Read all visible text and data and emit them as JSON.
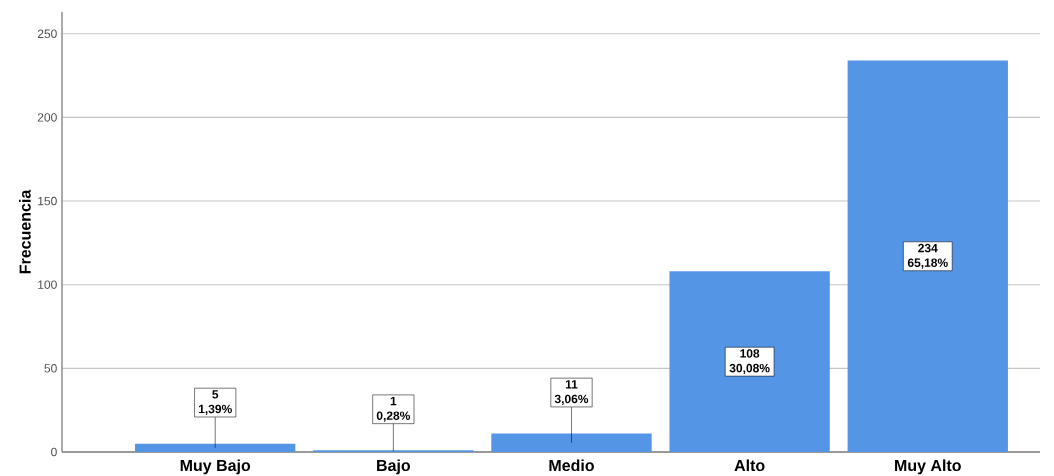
{
  "chart_data": {
    "type": "bar",
    "ylabel": "Frecuencia",
    "categories": [
      "Muy Bajo",
      "Bajo",
      "Medio",
      "Alto",
      "Muy Alto"
    ],
    "values": [
      5,
      1,
      11,
      108,
      234
    ],
    "value_labels": [
      "5 1,39%",
      "1 0,28%",
      "11 3,06%",
      "108 30,08%",
      "234 65,18%"
    ],
    "color": "#5595e5",
    "ylim": [
      0,
      263
    ],
    "yticks": [
      0,
      50,
      100,
      150,
      200,
      250
    ],
    "grid": "y"
  }
}
